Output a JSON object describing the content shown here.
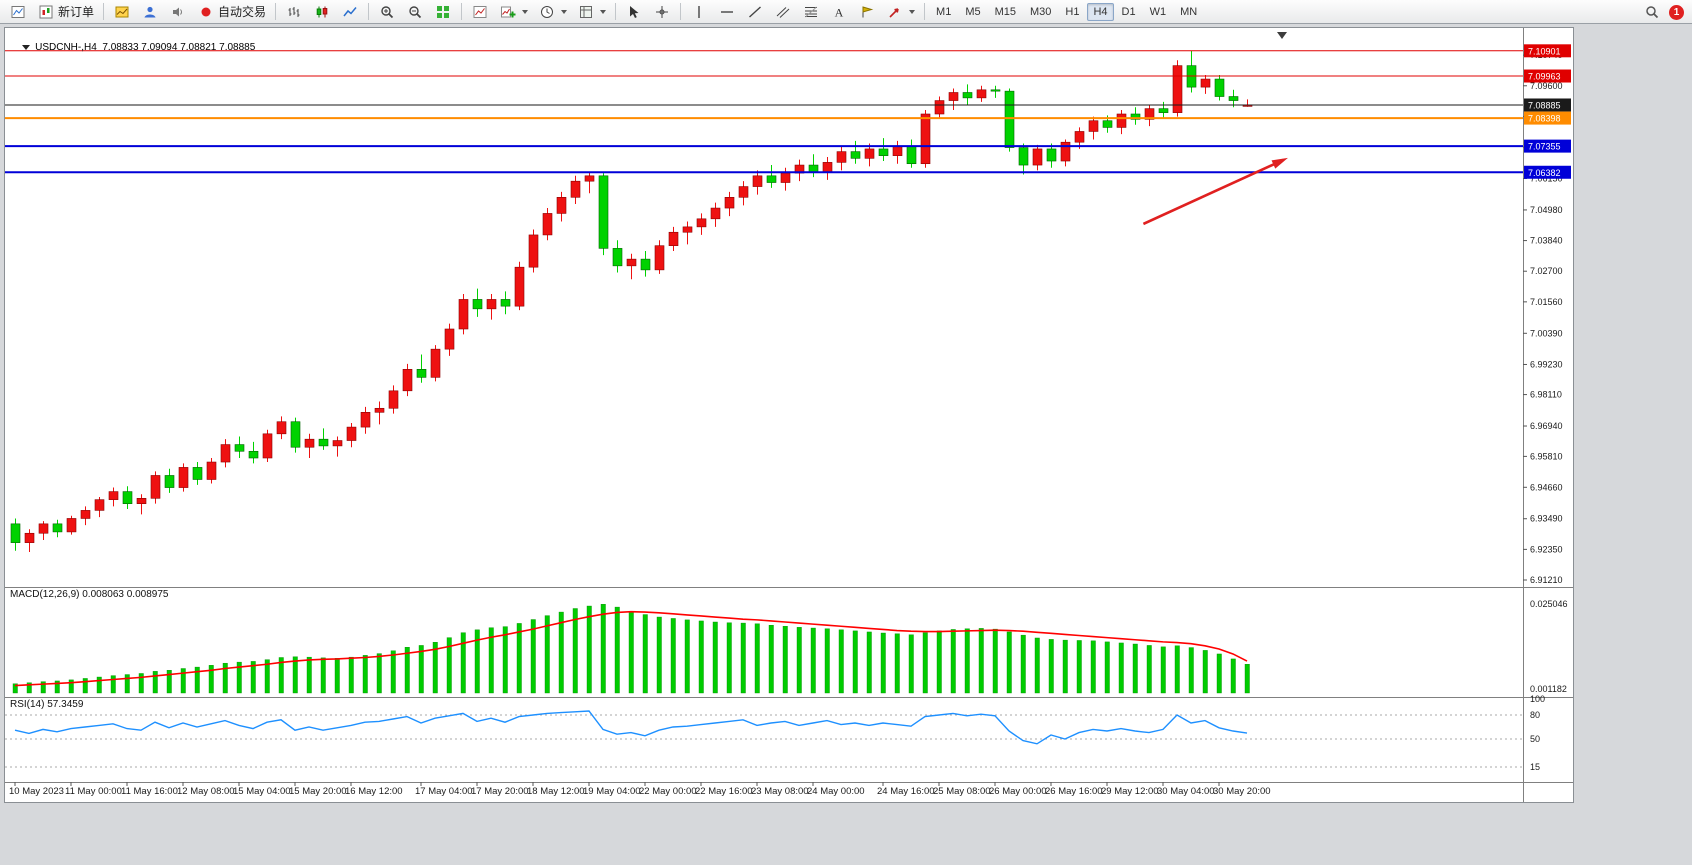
{
  "app": {
    "desktop_bg": "#d6d8db"
  },
  "toolbar": {
    "items": [
      {
        "icon": "new-chart-icon",
        "name": "new-chart"
      },
      {
        "icon": "new-order-icon",
        "name": "new-order",
        "label": "新订单"
      },
      {
        "sep": true
      },
      {
        "icon": "chart-window-icon",
        "name": "profiles"
      },
      {
        "icon": "profile-icon",
        "name": "market-watch"
      },
      {
        "icon": "sound-icon",
        "name": "alerts"
      },
      {
        "icon": "autotrade-icon",
        "name": "autotrade",
        "label": "自动交易"
      },
      {
        "sep": true
      },
      {
        "icon": "bar-chart-icon",
        "name": "bar-chart-mode"
      },
      {
        "icon": "candlestick-icon",
        "name": "candlestick-mode"
      },
      {
        "icon": "line-chart-icon",
        "name": "line-chart-mode"
      },
      {
        "sep": true
      },
      {
        "icon": "zoom-in-icon",
        "name": "zoom-in"
      },
      {
        "icon": "zoom-out-icon",
        "name": "zoom-out"
      },
      {
        "icon": "tile-windows-icon",
        "name": "tile-windows"
      },
      {
        "sep": true
      },
      {
        "icon": "indicator-list-icon",
        "name": "indicators"
      },
      {
        "icon": "add-indicator-icon",
        "name": "add-indicator",
        "dd": true
      },
      {
        "icon": "period-icon",
        "name": "periods",
        "dd": true
      },
      {
        "icon": "template-icon",
        "name": "templates",
        "dd": true
      },
      {
        "sep": true
      },
      {
        "icon": "cursor-icon",
        "name": "cursor-tool"
      },
      {
        "icon": "crosshair-icon",
        "name": "crosshair-tool"
      },
      {
        "sep": true
      },
      {
        "icon": "vline-icon",
        "name": "vertical-line-tool"
      },
      {
        "icon": "hline-icon",
        "name": "horizontal-line-tool"
      },
      {
        "icon": "trendline-icon",
        "name": "trendline-tool"
      },
      {
        "icon": "channel-icon",
        "name": "channel-tool"
      },
      {
        "icon": "fibo-icon",
        "name": "fibonacci-tool"
      },
      {
        "icon": "text-icon",
        "name": "text-tool"
      },
      {
        "icon": "label-icon",
        "name": "label-tool"
      },
      {
        "icon": "arrows-icon",
        "name": "arrows-tool",
        "dd": true
      },
      {
        "sep": true
      },
      {
        "tf": "M1"
      },
      {
        "tf": "M5"
      },
      {
        "tf": "M15"
      },
      {
        "tf": "M30"
      },
      {
        "tf": "H1"
      },
      {
        "tf": "H4",
        "active": true
      },
      {
        "tf": "D1"
      },
      {
        "tf": "W1"
      },
      {
        "tf": "MN"
      }
    ],
    "right": {
      "notification_count": "1"
    }
  },
  "chart": {
    "title_text": "USDCNH-,H4  7.08833 7.09094 7.08821 7.08885",
    "macd_label": "MACD(12,26,9) 0.008063 0.008975",
    "rsi_label": "RSI(14) 57.3459"
  },
  "chart_data": {
    "type": "candlestick",
    "symbol": "USDCNH-",
    "timeframe": "H4",
    "ohlc_current": {
      "open": 7.08833,
      "high": 7.09094,
      "low": 7.08821,
      "close": 7.08885
    },
    "up_color": "#ee1111",
    "down_color": "#00d200",
    "price_range": {
      "top": 7.1108,
      "bottom": 6.9095
    },
    "candles": [
      [
        6.933,
        6.935,
        6.923,
        6.926
      ],
      [
        6.926,
        6.931,
        6.9225,
        6.9295
      ],
      [
        6.9295,
        6.934,
        6.927,
        6.933
      ],
      [
        6.933,
        6.9345,
        6.928,
        6.93
      ],
      [
        6.93,
        6.936,
        6.929,
        6.935
      ],
      [
        6.935,
        6.9395,
        6.9325,
        6.938
      ],
      [
        6.938,
        6.943,
        6.9355,
        6.942
      ],
      [
        6.942,
        6.9465,
        6.9395,
        6.945
      ],
      [
        6.945,
        6.947,
        6.9385,
        6.9405
      ],
      [
        6.9405,
        6.944,
        6.9365,
        6.9425
      ],
      [
        6.9425,
        6.9525,
        6.9405,
        6.951
      ],
      [
        6.951,
        6.9535,
        6.9445,
        6.9465
      ],
      [
        6.9465,
        6.9555,
        6.945,
        6.954
      ],
      [
        6.954,
        6.956,
        6.9475,
        6.9495
      ],
      [
        6.9495,
        6.9575,
        6.948,
        6.956
      ],
      [
        6.956,
        6.9645,
        6.954,
        6.9625
      ],
      [
        6.9625,
        6.9655,
        6.9575,
        6.96
      ],
      [
        6.96,
        6.9635,
        6.9555,
        6.9575
      ],
      [
        6.9575,
        6.968,
        6.956,
        6.9665
      ],
      [
        6.9665,
        6.973,
        6.9645,
        6.971
      ],
      [
        6.971,
        6.9725,
        6.9595,
        6.9615
      ],
      [
        6.9615,
        6.9665,
        6.9575,
        6.9645
      ],
      [
        6.9645,
        6.9685,
        6.9605,
        6.962
      ],
      [
        6.962,
        6.9655,
        6.958,
        6.964
      ],
      [
        6.964,
        6.9705,
        6.9615,
        6.969
      ],
      [
        6.969,
        6.9765,
        6.9665,
        6.9745
      ],
      [
        6.9745,
        6.9785,
        6.97,
        6.976
      ],
      [
        6.976,
        6.9845,
        6.974,
        6.9825
      ],
      [
        6.9825,
        6.9925,
        6.9805,
        6.9905
      ],
      [
        6.9905,
        6.996,
        6.9855,
        6.9875
      ],
      [
        6.9875,
        6.9995,
        6.986,
        6.998
      ],
      [
        6.998,
        7.0075,
        6.9955,
        7.0055
      ],
      [
        7.0055,
        7.0185,
        7.0035,
        7.0165
      ],
      [
        7.0165,
        7.0205,
        7.01,
        7.013
      ],
      [
        7.013,
        7.0185,
        7.009,
        7.0165
      ],
      [
        7.0165,
        7.0195,
        7.011,
        7.014
      ],
      [
        7.014,
        7.0305,
        7.0125,
        7.0285
      ],
      [
        7.0285,
        7.0425,
        7.0265,
        7.0405
      ],
      [
        7.0405,
        7.0505,
        7.0385,
        7.0485
      ],
      [
        7.0485,
        7.0565,
        7.0455,
        7.0545
      ],
      [
        7.0545,
        7.0625,
        7.052,
        7.0605
      ],
      [
        7.0605,
        7.064,
        7.056,
        7.0625
      ],
      [
        7.0625,
        7.0635,
        7.033,
        7.0355
      ],
      [
        7.0355,
        7.0385,
        7.0265,
        7.029
      ],
      [
        7.029,
        7.0335,
        7.024,
        7.0315
      ],
      [
        7.0315,
        7.0345,
        7.025,
        7.0275
      ],
      [
        7.0275,
        7.0385,
        7.026,
        7.0365
      ],
      [
        7.0365,
        7.0435,
        7.0345,
        7.0415
      ],
      [
        7.0415,
        7.0455,
        7.037,
        7.0435
      ],
      [
        7.0435,
        7.0485,
        7.0405,
        7.0465
      ],
      [
        7.0465,
        7.0525,
        7.0435,
        7.0505
      ],
      [
        7.0505,
        7.0565,
        7.0475,
        7.0545
      ],
      [
        7.0545,
        7.0605,
        7.0515,
        7.0585
      ],
      [
        7.0585,
        7.0645,
        7.0555,
        7.0625
      ],
      [
        7.0625,
        7.0665,
        7.058,
        7.06
      ],
      [
        7.06,
        7.0655,
        7.057,
        7.0635
      ],
      [
        7.0635,
        7.0685,
        7.0605,
        7.0665
      ],
      [
        7.0665,
        7.0705,
        7.062,
        7.064
      ],
      [
        7.064,
        7.0695,
        7.061,
        7.0675
      ],
      [
        7.0675,
        7.0735,
        7.0645,
        7.0715
      ],
      [
        7.0715,
        7.0755,
        7.067,
        7.069
      ],
      [
        7.069,
        7.0745,
        7.066,
        7.0725
      ],
      [
        7.0725,
        7.0765,
        7.068,
        7.07
      ],
      [
        7.07,
        7.0755,
        7.067,
        7.0735
      ],
      [
        7.0735,
        7.076,
        7.0655,
        7.067
      ],
      [
        7.067,
        7.087,
        7.0655,
        7.0855
      ],
      [
        7.0855,
        7.092,
        7.084,
        7.0905
      ],
      [
        7.0905,
        7.095,
        7.087,
        7.0935
      ],
      [
        7.0935,
        7.0965,
        7.089,
        7.0915
      ],
      [
        7.0915,
        7.096,
        7.09,
        7.0945
      ],
      [
        7.0945,
        7.096,
        7.0915,
        7.094
      ],
      [
        7.094,
        7.095,
        7.0715,
        7.073
      ],
      [
        7.073,
        7.0745,
        7.063,
        7.0665
      ],
      [
        7.0665,
        7.074,
        7.0645,
        7.0725
      ],
      [
        7.0725,
        7.0745,
        7.0655,
        7.068
      ],
      [
        7.068,
        7.076,
        7.066,
        7.075
      ],
      [
        7.075,
        7.0805,
        7.0725,
        7.079
      ],
      [
        7.079,
        7.0845,
        7.076,
        7.083
      ],
      [
        7.083,
        7.085,
        7.0785,
        7.0805
      ],
      [
        7.0805,
        7.087,
        7.078,
        7.0855
      ],
      [
        7.0855,
        7.088,
        7.0815,
        7.0835
      ],
      [
        7.0835,
        7.089,
        7.081,
        7.0875
      ],
      [
        7.0875,
        7.09,
        7.084,
        7.086
      ],
      [
        7.086,
        7.1055,
        7.0845,
        7.1035
      ],
      [
        7.1035,
        7.10901,
        7.0935,
        7.0955
      ],
      [
        7.0955,
        7.1,
        7.093,
        7.0985
      ],
      [
        7.0985,
        7.1,
        7.0905,
        7.092
      ],
      [
        7.092,
        7.0945,
        7.088,
        7.0905
      ],
      [
        7.08833,
        7.09094,
        7.08821,
        7.08885
      ]
    ],
    "hlines": [
      {
        "price": 7.10901,
        "label": "7.10901",
        "color": "#e00000",
        "width": 1
      },
      {
        "price": 7.09963,
        "label": "7.09963",
        "color": "#e00000",
        "width": 1
      },
      {
        "price": 7.08885,
        "label": "7.08885",
        "color": "#1a1a1a",
        "width": 1
      },
      {
        "price": 7.08398,
        "label": "7.08398",
        "color": "#ff8c00",
        "width": 2
      },
      {
        "price": 7.07355,
        "label": "7.07355",
        "color": "#0000d8",
        "width": 2
      },
      {
        "price": 7.06382,
        "label": "7.06382",
        "color": "#0000d8",
        "width": 2
      }
    ],
    "price_axis_labels": [
      "7.10740",
      "7.09600",
      "7.08460",
      "7.07320",
      "7.06150",
      "7.04980",
      "7.03840",
      "7.02700",
      "7.01560",
      "7.00390",
      "6.99230",
      "6.98110",
      "6.96940",
      "6.95810",
      "6.94660",
      "6.93490",
      "6.92350",
      "6.91210"
    ],
    "time_labels": [
      {
        "t": 0,
        "text": "10 May 2023"
      },
      {
        "t": 4,
        "text": "11 May 00:00"
      },
      {
        "t": 8,
        "text": "11 May 16:00"
      },
      {
        "t": 12,
        "text": "12 May 08:00"
      },
      {
        "t": 16,
        "text": "15 May 04:00"
      },
      {
        "t": 20,
        "text": "15 May 20:00"
      },
      {
        "t": 24,
        "text": "16 May 12:00"
      },
      {
        "t": 29,
        "text": "17 May 04:00"
      },
      {
        "t": 33,
        "text": "17 May 20:00"
      },
      {
        "t": 37,
        "text": "18 May 12:00"
      },
      {
        "t": 41,
        "text": "19 May 04:00"
      },
      {
        "t": 45,
        "text": "22 May 00:00"
      },
      {
        "t": 49,
        "text": "22 May 16:00"
      },
      {
        "t": 53,
        "text": "23 May 08:00"
      },
      {
        "t": 57,
        "text": "24 May 00:00"
      },
      {
        "t": 62,
        "text": "24 May 16:00"
      },
      {
        "t": 66,
        "text": "25 May 08:00"
      },
      {
        "t": 70,
        "text": "26 May 00:00"
      },
      {
        "t": 74,
        "text": "26 May 16:00"
      },
      {
        "t": 78,
        "text": "29 May 12:00"
      },
      {
        "t": 82,
        "text": "30 May 04:00"
      },
      {
        "t": 86,
        "text": "30 May 20:00"
      }
    ],
    "macd": {
      "label": "MACD(12,26,9) 0.008063 0.008975",
      "main_value": 0.008063,
      "signal_value": 0.008975,
      "histogram_color": "#00cc00",
      "signal_color": "#ff0000",
      "axis_max_label": "0.025046",
      "axis_min_label": "0.001182",
      "values": [
        0.0026,
        0.0029,
        0.0032,
        0.0034,
        0.0037,
        0.0041,
        0.0045,
        0.0049,
        0.0052,
        0.0055,
        0.0061,
        0.0064,
        0.0069,
        0.0073,
        0.0078,
        0.0084,
        0.0087,
        0.0089,
        0.0094,
        0.01,
        0.0102,
        0.0101,
        0.0099,
        0.0098,
        0.0101,
        0.0106,
        0.0111,
        0.0119,
        0.0129,
        0.0134,
        0.0143,
        0.0156,
        0.017,
        0.0178,
        0.0184,
        0.0187,
        0.0196,
        0.0207,
        0.0218,
        0.0228,
        0.0238,
        0.0245,
        0.025,
        0.0242,
        0.023,
        0.0221,
        0.0214,
        0.021,
        0.0206,
        0.0203,
        0.02,
        0.0198,
        0.0197,
        0.0195,
        0.0191,
        0.0188,
        0.0185,
        0.0183,
        0.0181,
        0.0178,
        0.0175,
        0.0172,
        0.0169,
        0.0167,
        0.0164,
        0.017,
        0.0175,
        0.0179,
        0.0181,
        0.0182,
        0.018,
        0.0172,
        0.0163,
        0.0155,
        0.0151,
        0.0149,
        0.0148,
        0.0147,
        0.0144,
        0.0141,
        0.0138,
        0.0134,
        0.013,
        0.0133,
        0.0128,
        0.012,
        0.011,
        0.0096,
        0.0081
      ],
      "signal": [
        0.0021,
        0.0023,
        0.0025,
        0.0027,
        0.0029,
        0.0032,
        0.0035,
        0.0038,
        0.0041,
        0.0044,
        0.0048,
        0.0052,
        0.0056,
        0.006,
        0.0064,
        0.0069,
        0.0073,
        0.0077,
        0.0081,
        0.0086,
        0.009,
        0.0093,
        0.0095,
        0.0096,
        0.0098,
        0.01,
        0.0103,
        0.0107,
        0.0112,
        0.0117,
        0.0123,
        0.0131,
        0.014,
        0.0149,
        0.0157,
        0.0164,
        0.0172,
        0.018,
        0.0189,
        0.0198,
        0.0207,
        0.0215,
        0.0222,
        0.0227,
        0.0229,
        0.0228,
        0.0226,
        0.0223,
        0.022,
        0.0217,
        0.0214,
        0.0211,
        0.0208,
        0.0206,
        0.0203,
        0.02,
        0.0197,
        0.0194,
        0.0191,
        0.0188,
        0.0185,
        0.0182,
        0.0179,
        0.0176,
        0.0174,
        0.0173,
        0.0173,
        0.0174,
        0.0175,
        0.0176,
        0.0177,
        0.0176,
        0.0174,
        0.0171,
        0.0168,
        0.0165,
        0.0162,
        0.0159,
        0.0156,
        0.0153,
        0.015,
        0.0147,
        0.0144,
        0.0142,
        0.0139,
        0.0133,
        0.0124,
        0.011,
        0.009
      ]
    },
    "rsi": {
      "label": "RSI(14) 57.3459",
      "current_value": 57.3459,
      "line_color": "#1e90ff",
      "range": [
        0,
        100
      ],
      "levels": [
        80,
        50,
        15
      ],
      "axis_labels": [
        {
          "v": 100,
          "text": "100"
        },
        {
          "v": 80,
          "text": "80"
        },
        {
          "v": 50,
          "text": "50"
        },
        {
          "v": 15,
          "text": "15"
        }
      ],
      "values": [
        61,
        57,
        62,
        59,
        63,
        65,
        67,
        69,
        63,
        61,
        71,
        64,
        70,
        65,
        69,
        73,
        67,
        63,
        71,
        74,
        61,
        65,
        61,
        64,
        67,
        71,
        72,
        75,
        78,
        70,
        76,
        79,
        82,
        72,
        76,
        71,
        78,
        80,
        82,
        83,
        84,
        85,
        62,
        56,
        58,
        54,
        61,
        65,
        66,
        68,
        70,
        72,
        74,
        67,
        70,
        72,
        67,
        70,
        73,
        68,
        70,
        67,
        70,
        68,
        66,
        78,
        80,
        82,
        79,
        81,
        79,
        60,
        48,
        44,
        55,
        50,
        58,
        62,
        60,
        63,
        60,
        58,
        62,
        80,
        70,
        73,
        64,
        60,
        57.35
      ]
    },
    "arrow": {
      "from": {
        "t": 80.6,
        "price": 7.0446
      },
      "to": {
        "t": 90.6,
        "price": 7.0684
      },
      "color": "#e02020"
    }
  }
}
